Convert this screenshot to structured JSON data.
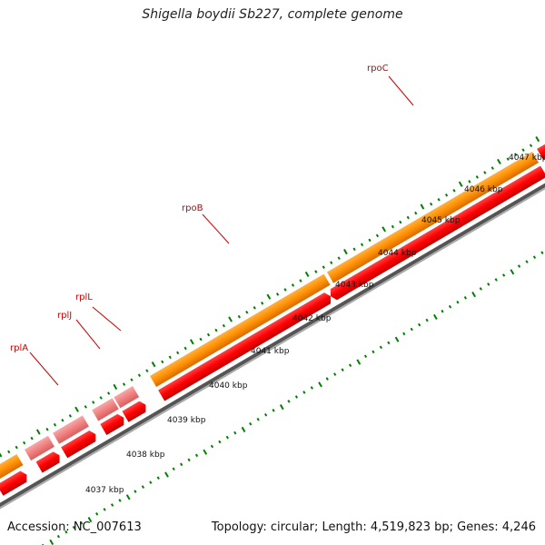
{
  "title": "Shigella boydii Sb227, complete genome",
  "footer": {
    "accession": "Accession: NC_007613",
    "summary": "Topology: circular; Length: 4,519,823 bp; Genes: 4,246"
  },
  "colors": {
    "backbone": "#444444",
    "tick": "#008000",
    "cds_forward": "#ff8800",
    "cds_reverse": "#ff0000",
    "rna": "#f08080",
    "other": "#99ee33",
    "label": "#cc0000"
  },
  "gene_labels": [
    "rpoC",
    "rpoB",
    "rplL",
    "rplJ",
    "rplA"
  ],
  "scale_labels": [
    "4037 kbp",
    "4038 kbp",
    "4039 kbp",
    "4040 kbp",
    "4041 kbp",
    "4042 kbp",
    "4043 kbp",
    "4044 kbp",
    "4045 kbp",
    "4046 kbp",
    "4047 kbp"
  ]
}
